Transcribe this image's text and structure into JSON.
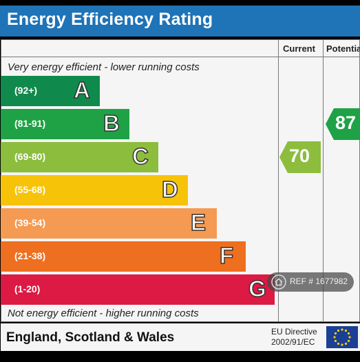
{
  "header": {
    "title": "Energy Efficiency Rating"
  },
  "columns": {
    "current": "Current",
    "potential": "Potentia"
  },
  "notes": {
    "top": "Very energy efficient - lower running costs",
    "bottom": "Not energy efficient - higher running costs"
  },
  "chart_data": {
    "type": "bar",
    "title": "Energy Efficiency Rating",
    "categories": [
      "A",
      "B",
      "C",
      "D",
      "E",
      "F",
      "G"
    ],
    "bands": [
      {
        "range": "(92+)",
        "letter": "A",
        "color": "#0f8a4c"
      },
      {
        "range": "(81-91)",
        "letter": "B",
        "color": "#1fa246"
      },
      {
        "range": "(69-80)",
        "letter": "C",
        "color": "#8dbd3d"
      },
      {
        "range": "(55-68)",
        "letter": "D",
        "color": "#f7c308"
      },
      {
        "range": "(39-54)",
        "letter": "E",
        "color": "#f59a52"
      },
      {
        "range": "(21-38)",
        "letter": "F",
        "color": "#ee6f1f"
      },
      {
        "range": "(1-20)",
        "letter": "G",
        "color": "#dc1a44"
      }
    ],
    "current": {
      "value": 70,
      "band": "C",
      "color": "#8dbd3d"
    },
    "potential": {
      "value": 87,
      "band": "B",
      "color": "#1fa246"
    }
  },
  "footer": {
    "region": "England, Scotland & Wales",
    "directive_line1": "EU Directive",
    "directive_line2": "2002/91/EC"
  },
  "watermark": {
    "text": "REF # 1677982",
    "icon": "home-icon"
  }
}
